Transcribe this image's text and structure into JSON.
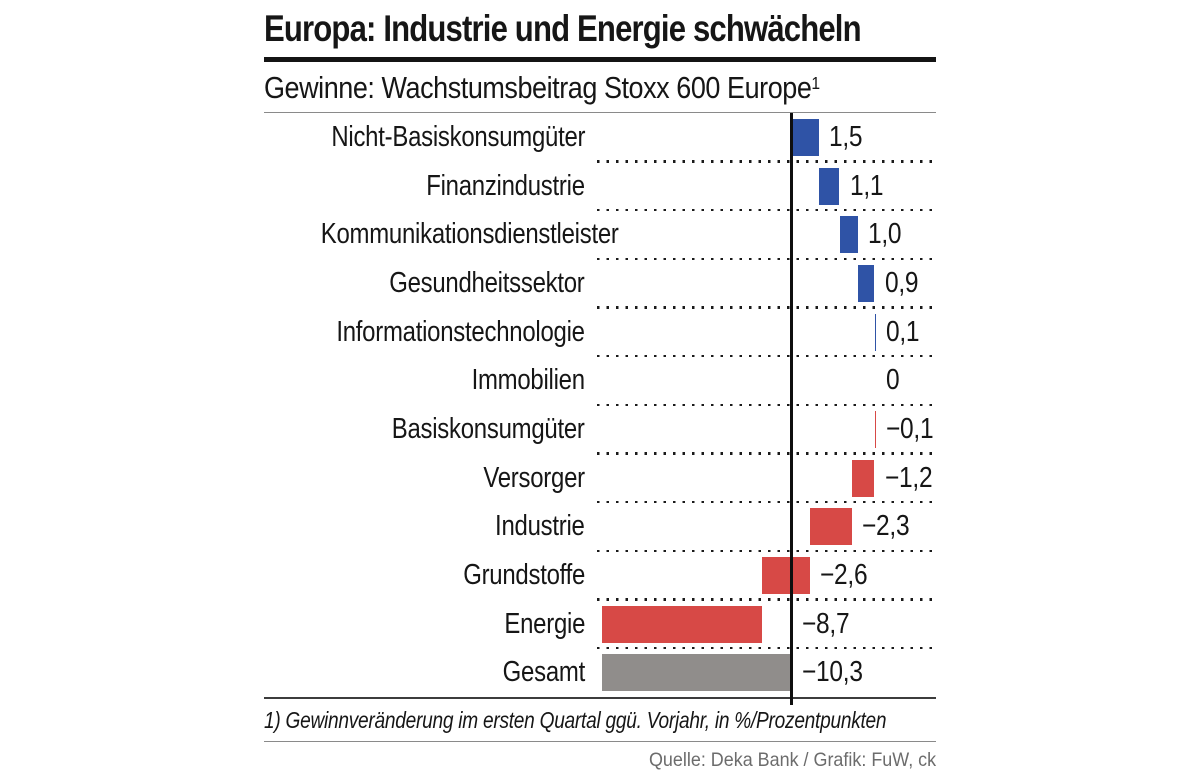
{
  "figure": {
    "title": "Europa: Industrie und Energie schwächeln",
    "subtitle": "Gewinne: Wachstumsbeitrag Stoxx 600 Europe",
    "subtitle_superscript": "1",
    "footnote": "1) Gewinnveränderung im ersten Quartal ggü. Vorjahr, in %/Prozentpunkten",
    "source": "Quelle: Deka Bank / Grafik: FuW, ck"
  },
  "chart_data": {
    "type": "bar",
    "subtype": "horizontal-waterfall",
    "title": "Gewinne: Wachstumsbeitrag Stoxx 600 Europe (1)",
    "unit": "%/Prozentpunkte",
    "legend": "none",
    "grid": "dotted row separators, vertical zero line",
    "axis_range_approx": [
      -10.5,
      7.9
    ],
    "categories": [
      "Nicht-Basiskonsumgüter",
      "Finanzindustrie",
      "Kommunikationsdienstleister",
      "Gesundheitssektor",
      "Informationstechnologie",
      "Immobilien",
      "Basiskonsumgüter",
      "Versorger",
      "Industrie",
      "Grundstoffe",
      "Energie",
      "Gesamt"
    ],
    "values": [
      1.5,
      1.1,
      1.0,
      0.9,
      0.1,
      0,
      -0.1,
      -1.2,
      -2.3,
      -2.6,
      -8.7,
      -10.3
    ],
    "rows": [
      {
        "label": "Nicht-Basiskonsumgüter",
        "value": 1.5,
        "display": "1,5",
        "kind": "positive"
      },
      {
        "label": "Finanzindustrie",
        "value": 1.1,
        "display": "1,1",
        "kind": "positive"
      },
      {
        "label": "Kommunikationsdienstleister",
        "value": 1.0,
        "display": "1,0",
        "kind": "positive"
      },
      {
        "label": "Gesundheitssektor",
        "value": 0.9,
        "display": "0,9",
        "kind": "positive"
      },
      {
        "label": "Informationstechnologie",
        "value": 0.1,
        "display": "0,1",
        "kind": "positive"
      },
      {
        "label": "Immobilien",
        "value": 0,
        "display": "0",
        "kind": "zero"
      },
      {
        "label": "Basiskonsumgüter",
        "value": -0.1,
        "display": "−0,1",
        "kind": "negative"
      },
      {
        "label": "Versorger",
        "value": -1.2,
        "display": "−1,2",
        "kind": "negative"
      },
      {
        "label": "Industrie",
        "value": -2.3,
        "display": "−2,3",
        "kind": "negative"
      },
      {
        "label": "Grundstoffe",
        "value": -2.6,
        "display": "−2,6",
        "kind": "negative"
      },
      {
        "label": "Energie",
        "value": -8.7,
        "display": "−8,7",
        "kind": "negative"
      },
      {
        "label": "Gesamt",
        "value": -10.3,
        "display": "−10,3",
        "kind": "total"
      }
    ],
    "colors": {
      "positive": "#2F53A6",
      "negative": "#D74946",
      "total": "#908D8B",
      "axis": "#0f0f0f",
      "separator_dots": "#1a1a1a"
    }
  }
}
